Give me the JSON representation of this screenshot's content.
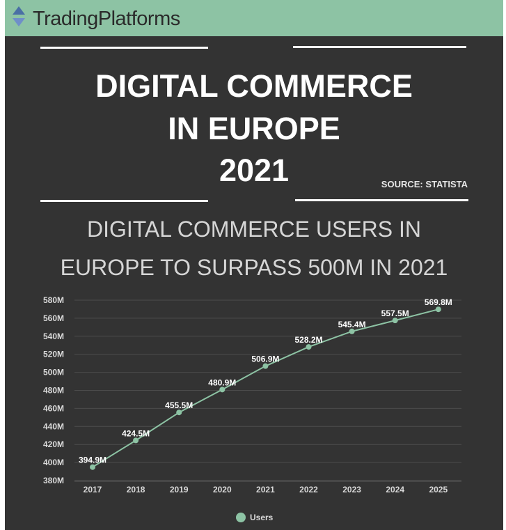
{
  "brand": {
    "name": "TradingPlatforms",
    "icon": "up-down-arrows-icon"
  },
  "headline": {
    "lines": [
      "DIGITAL COMMERCE",
      "IN EUROPE",
      "2021"
    ]
  },
  "source": "SOURCE: STATISTA",
  "subtitle": {
    "lines": [
      "DIGITAL COMMERCE USERS IN",
      "EUROPE TO SURPASS 500M IN 2021"
    ]
  },
  "colors": {
    "header": "#8dc3a4",
    "background": "#333333",
    "series": "#8dc3a4",
    "text": "#ffffff"
  },
  "chart_data": {
    "type": "line",
    "x": [
      "2017",
      "2018",
      "2019",
      "2020",
      "2021",
      "2022",
      "2023",
      "2024",
      "2025"
    ],
    "series": [
      {
        "name": "Users",
        "values": [
          394.9,
          424.5,
          455.5,
          480.9,
          506.9,
          528.2,
          545.4,
          557.5,
          569.8
        ]
      }
    ],
    "data_labels": [
      "394.9M",
      "424.5M",
      "455.5M",
      "480.9M",
      "506.9M",
      "528.2M",
      "545.4M",
      "557.5M",
      "569.8M"
    ],
    "y_ticks": [
      380,
      400,
      420,
      440,
      460,
      480,
      500,
      520,
      540,
      560,
      580
    ],
    "y_tick_labels": [
      "380M",
      "400M",
      "420M",
      "440M",
      "460M",
      "480M",
      "500M",
      "520M",
      "540M",
      "560M",
      "580M"
    ],
    "ylim": [
      375,
      585
    ],
    "grid": true,
    "legend": {
      "position": "bottom",
      "entries": [
        "Users"
      ]
    }
  }
}
